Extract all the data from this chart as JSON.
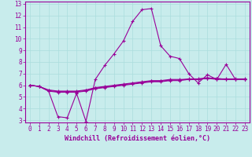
{
  "xlabel": "Windchill (Refroidissement éolien,°C)",
  "background_color": "#c8ecec",
  "line_color": "#990099",
  "xlim": [
    -0.5,
    23.5
  ],
  "ylim": [
    2.8,
    13.2
  ],
  "xticks": [
    0,
    1,
    2,
    3,
    4,
    5,
    6,
    7,
    8,
    9,
    10,
    11,
    12,
    13,
    14,
    15,
    16,
    17,
    18,
    19,
    20,
    21,
    22,
    23
  ],
  "yticks": [
    3,
    4,
    5,
    6,
    7,
    8,
    9,
    10,
    11,
    12,
    13
  ],
  "series1_x": [
    0,
    1,
    2,
    3,
    4,
    5,
    6,
    7,
    8,
    9,
    10,
    11,
    12,
    13,
    14,
    15,
    16,
    17,
    18,
    19,
    20,
    21,
    22,
    23
  ],
  "series1_y": [
    6.0,
    5.9,
    5.5,
    3.3,
    3.2,
    5.3,
    2.9,
    6.5,
    7.7,
    8.7,
    9.8,
    11.5,
    12.5,
    12.6,
    9.4,
    8.5,
    8.3,
    7.0,
    6.2,
    6.9,
    6.5,
    7.8,
    6.5,
    6.5
  ],
  "series2_x": [
    0,
    1,
    2,
    3,
    4,
    5,
    6,
    7,
    8,
    9,
    10,
    11,
    12,
    13,
    14,
    15,
    16,
    17,
    18,
    19,
    20,
    21,
    22,
    23
  ],
  "series2_y": [
    6.0,
    5.9,
    5.5,
    5.4,
    5.4,
    5.4,
    5.5,
    5.7,
    5.8,
    5.9,
    6.0,
    6.1,
    6.2,
    6.3,
    6.3,
    6.4,
    6.4,
    6.5,
    6.5,
    6.6,
    6.6,
    6.5,
    6.5,
    6.5
  ],
  "series3_x": [
    0,
    1,
    2,
    3,
    4,
    5,
    6,
    7,
    8,
    9,
    10,
    11,
    12,
    13,
    14,
    15,
    16,
    17,
    18,
    19,
    20,
    21,
    22,
    23
  ],
  "series3_y": [
    6.0,
    5.9,
    5.55,
    5.45,
    5.45,
    5.45,
    5.55,
    5.75,
    5.85,
    5.95,
    6.05,
    6.15,
    6.25,
    6.35,
    6.35,
    6.45,
    6.45,
    6.55,
    6.55,
    6.65,
    6.55,
    6.55,
    6.55,
    6.55
  ],
  "series4_x": [
    0,
    1,
    2,
    3,
    4,
    5,
    6,
    7,
    8,
    9,
    10,
    11,
    12,
    13,
    14,
    15,
    16,
    17,
    18,
    19,
    20,
    21,
    22,
    23
  ],
  "series4_y": [
    6.0,
    5.9,
    5.6,
    5.5,
    5.5,
    5.5,
    5.6,
    5.8,
    5.9,
    6.0,
    6.1,
    6.2,
    6.3,
    6.4,
    6.4,
    6.5,
    6.5,
    6.5,
    6.5,
    6.6,
    6.5,
    6.5,
    6.5,
    6.5
  ],
  "marker": "+",
  "markersize": 3,
  "linewidth": 0.8,
  "xlabel_fontsize": 6,
  "tick_fontsize": 5.5,
  "grid_color": "#aadddd",
  "spine_color": "#990099"
}
